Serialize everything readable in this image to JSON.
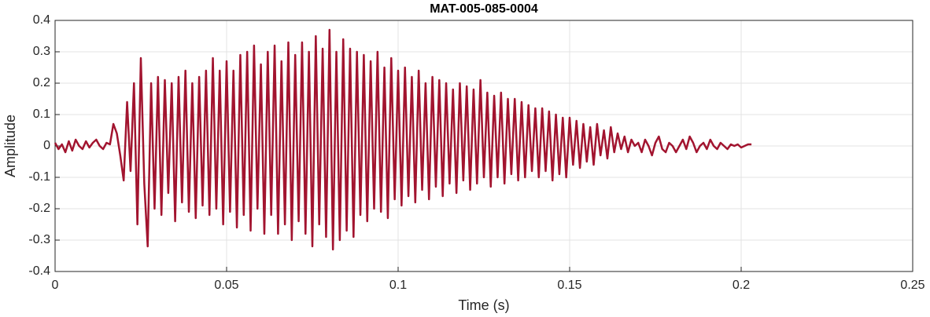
{
  "chart_data": {
    "type": "line",
    "title": "MAT-005-085-0004",
    "xlabel": "Time (s)",
    "ylabel": "Amplitude",
    "color": "#a2142f",
    "grid": true,
    "xlim": [
      0,
      0.25
    ],
    "xticks": [
      0,
      0.05,
      0.1,
      0.15,
      0.2,
      0.25
    ],
    "ylim": [
      -0.4,
      0.4
    ],
    "yticks": [
      -0.4,
      -0.3,
      -0.2,
      -0.1,
      0,
      0.1,
      0.2,
      0.3,
      0.4
    ],
    "x": [
      0,
      0.001,
      0.002,
      0.003,
      0.004,
      0.005,
      0.006,
      0.007,
      0.008,
      0.009,
      0.01,
      0.011,
      0.012,
      0.013,
      0.014,
      0.015,
      0.016,
      0.017,
      0.018,
      0.019,
      0.02,
      0.021,
      0.022,
      0.023,
      0.024,
      0.025,
      0.026,
      0.027,
      0.028,
      0.029,
      0.03,
      0.031,
      0.032,
      0.033,
      0.034,
      0.035,
      0.036,
      0.037,
      0.038,
      0.039,
      0.04,
      0.041,
      0.042,
      0.043,
      0.044,
      0.045,
      0.046,
      0.047,
      0.048,
      0.049,
      0.05,
      0.051,
      0.052,
      0.053,
      0.054,
      0.055,
      0.056,
      0.057,
      0.058,
      0.059,
      0.06,
      0.061,
      0.062,
      0.063,
      0.064,
      0.065,
      0.066,
      0.067,
      0.068,
      0.069,
      0.07,
      0.071,
      0.072,
      0.073,
      0.074,
      0.075,
      0.076,
      0.077,
      0.078,
      0.079,
      0.08,
      0.081,
      0.082,
      0.083,
      0.084,
      0.085,
      0.086,
      0.087,
      0.088,
      0.089,
      0.09,
      0.091,
      0.092,
      0.093,
      0.094,
      0.095,
      0.096,
      0.097,
      0.098,
      0.099,
      0.1,
      0.101,
      0.102,
      0.103,
      0.104,
      0.105,
      0.106,
      0.107,
      0.108,
      0.109,
      0.11,
      0.111,
      0.112,
      0.113,
      0.114,
      0.115,
      0.116,
      0.117,
      0.118,
      0.119,
      0.12,
      0.121,
      0.122,
      0.123,
      0.124,
      0.125,
      0.126,
      0.127,
      0.128,
      0.129,
      0.13,
      0.131,
      0.132,
      0.133,
      0.134,
      0.135,
      0.136,
      0.137,
      0.138,
      0.139,
      0.14,
      0.141,
      0.142,
      0.143,
      0.144,
      0.145,
      0.146,
      0.147,
      0.148,
      0.149,
      0.15,
      0.151,
      0.152,
      0.153,
      0.154,
      0.155,
      0.156,
      0.157,
      0.158,
      0.159,
      0.16,
      0.161,
      0.162,
      0.163,
      0.164,
      0.165,
      0.166,
      0.167,
      0.168,
      0.169,
      0.17,
      0.171,
      0.172,
      0.173,
      0.174,
      0.175,
      0.176,
      0.177,
      0.178,
      0.179,
      0.18,
      0.181,
      0.182,
      0.183,
      0.184,
      0.185,
      0.186,
      0.187,
      0.188,
      0.189,
      0.19,
      0.191,
      0.192,
      0.193,
      0.194,
      0.195,
      0.196,
      0.197,
      0.198,
      0.199,
      0.2,
      0.201,
      0.202,
      0.203
    ],
    "values": [
      0.01,
      -0.01,
      0.005,
      -0.02,
      0.015,
      -0.015,
      0.02,
      0,
      -0.01,
      0.015,
      -0.005,
      0.01,
      0.02,
      0,
      -0.01,
      0.01,
      0.005,
      0.07,
      0.04,
      -0.03,
      -0.11,
      0.14,
      -0.08,
      0.2,
      -0.25,
      0.28,
      -0.12,
      -0.32,
      0.2,
      -0.2,
      0.22,
      -0.22,
      0.21,
      -0.15,
      0.2,
      -0.24,
      0.22,
      -0.18,
      0.24,
      -0.21,
      0.2,
      -0.23,
      0.22,
      -0.19,
      0.24,
      -0.22,
      0.28,
      -0.2,
      0.24,
      -0.25,
      0.27,
      -0.21,
      0.24,
      -0.26,
      0.29,
      -0.22,
      0.3,
      -0.27,
      0.32,
      -0.2,
      0.26,
      -0.28,
      0.3,
      -0.22,
      0.32,
      -0.28,
      0.27,
      -0.25,
      0.33,
      -0.3,
      0.29,
      -0.24,
      0.33,
      -0.28,
      0.3,
      -0.32,
      0.35,
      -0.25,
      0.31,
      -0.29,
      0.37,
      -0.33,
      0.3,
      -0.3,
      0.34,
      -0.27,
      0.31,
      -0.29,
      0.3,
      -0.22,
      0.29,
      -0.24,
      0.27,
      -0.2,
      0.3,
      -0.21,
      0.25,
      -0.23,
      0.28,
      -0.17,
      0.24,
      -0.19,
      0.25,
      -0.16,
      0.22,
      -0.18,
      0.24,
      -0.14,
      0.2,
      -0.17,
      0.22,
      -0.13,
      0.21,
      -0.16,
      0.2,
      -0.12,
      0.18,
      -0.15,
      0.2,
      -0.11,
      0.19,
      -0.14,
      0.18,
      -0.12,
      0.21,
      -0.1,
      0.17,
      -0.13,
      0.16,
      -0.1,
      0.17,
      -0.12,
      0.15,
      -0.09,
      0.15,
      -0.11,
      0.14,
      -0.1,
      0.13,
      -0.08,
      0.12,
      -0.1,
      0.12,
      -0.08,
      0.11,
      -0.11,
      0.1,
      -0.09,
      0.09,
      -0.1,
      0.09,
      -0.06,
      0.08,
      -0.07,
      0.07,
      -0.05,
      0.06,
      -0.06,
      0.07,
      -0.03,
      0.05,
      -0.04,
      0.06,
      -0.02,
      0.04,
      -0.01,
      0.03,
      -0.02,
      0.02,
      0,
      0.01,
      -0.02,
      0.02,
      0,
      -0.03,
      0.01,
      0.03,
      -0.01,
      -0.02,
      0.01,
      0,
      -0.02,
      0,
      0.02,
      -0.01,
      0.03,
      0.01,
      -0.02,
      0,
      0.01,
      -0.01,
      0.02,
      0,
      -0.01,
      0.01,
      0,
      -0.01,
      0.005,
      0,
      0.005,
      -0.005,
      0,
      0.005,
      0.005
    ]
  }
}
